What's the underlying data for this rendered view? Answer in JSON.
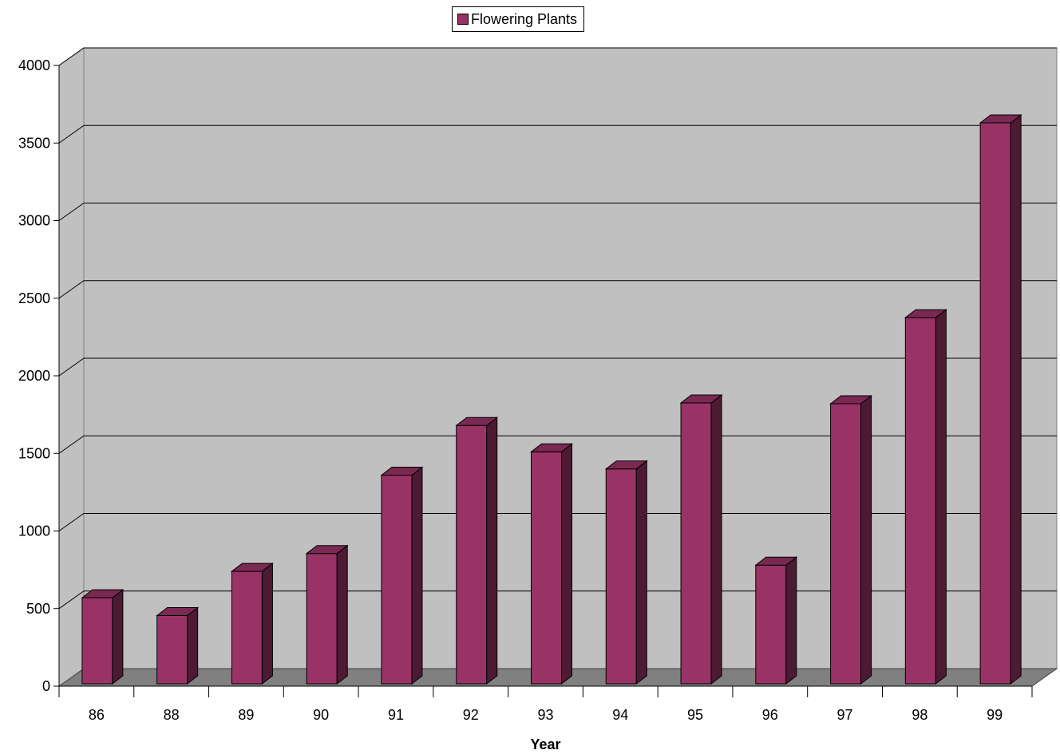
{
  "chart_data": {
    "type": "bar",
    "categories": [
      "86",
      "88",
      "89",
      "90",
      "91",
      "92",
      "93",
      "94",
      "95",
      "96",
      "97",
      "98",
      "99"
    ],
    "series": [
      {
        "name": "Flowering Plants",
        "values": [
          570,
          455,
          740,
          855,
          1360,
          1680,
          1510,
          1400,
          1825,
          780,
          1820,
          2375,
          3630
        ]
      }
    ],
    "xlabel": "Year",
    "ylabel": "",
    "ylim": [
      0,
      4000
    ],
    "yticks": [
      0,
      500,
      1000,
      1500,
      2000,
      2500,
      3000,
      3500,
      4000
    ],
    "grid": true,
    "legend": "top-center",
    "style": "3d-column"
  },
  "colors": {
    "bar_front": "#993366",
    "bar_top": "#7a2952",
    "bar_side": "#4d1a33",
    "wall": "#c0c0c0",
    "floor": "#808080",
    "gridline": "#000000"
  }
}
